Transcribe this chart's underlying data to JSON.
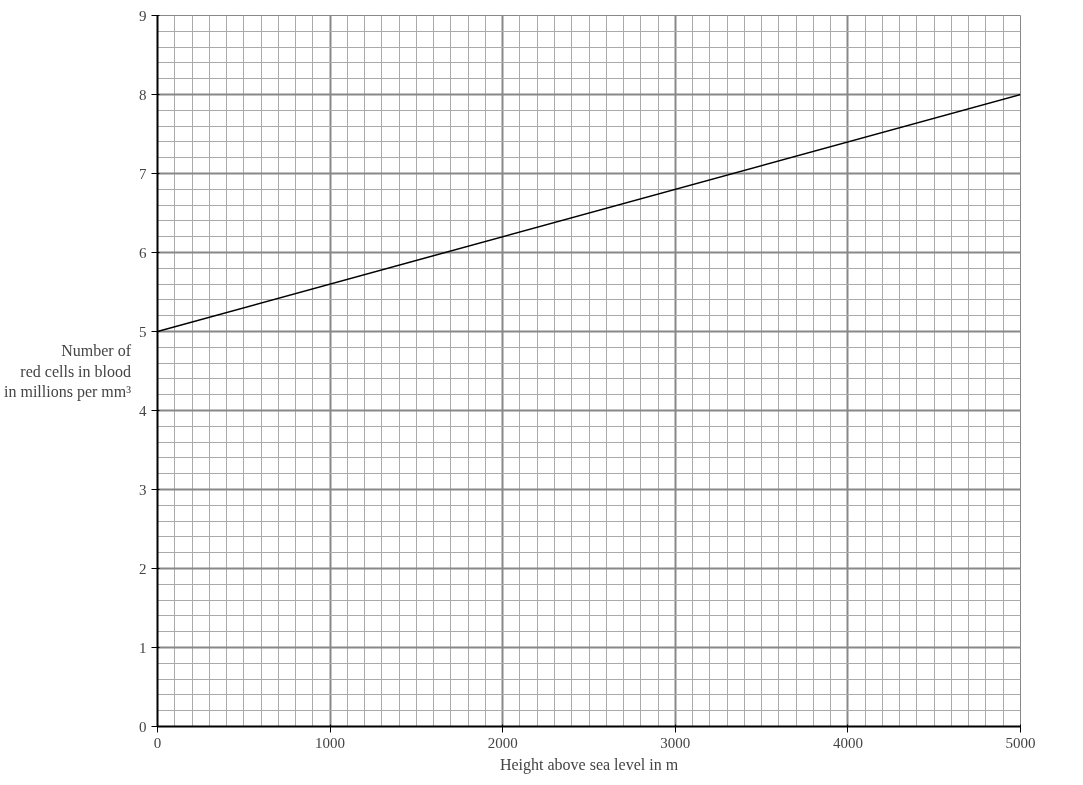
{
  "chart_data": {
    "type": "line",
    "xlabel": "Height above sea level in m",
    "ylabel": "Number of\nred cells in blood\nin millions per mm³",
    "x": [
      0,
      5000
    ],
    "series": [
      {
        "color": "#000000",
        "values": [
          5,
          8
        ]
      }
    ],
    "xlim": [
      0,
      5000
    ],
    "ylim": [
      0,
      9
    ],
    "xticks": [
      0,
      1000,
      2000,
      3000,
      4000,
      5000
    ],
    "yticks": [
      0,
      1,
      2,
      3,
      4,
      5,
      6,
      7,
      8,
      9
    ],
    "grid": true,
    "marker": "none",
    "line_style": "solid"
  }
}
